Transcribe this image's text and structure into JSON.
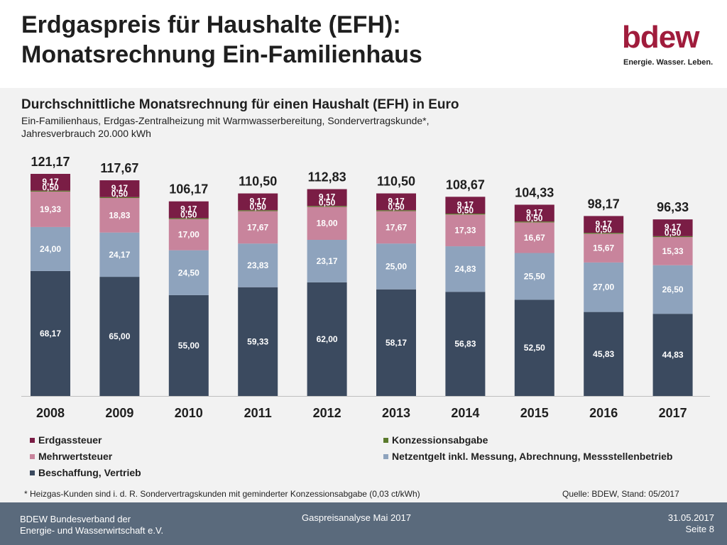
{
  "title_line1": "Erdgaspreis für Haushalte (EFH):",
  "title_line2": "Monatsrechnung Ein-Familienhaus",
  "logo": {
    "word": "bdew",
    "tagline": "Energie. Wasser. Leben."
  },
  "chart_data": {
    "type": "bar",
    "title": "Durchschnittliche Monatsrechnung für einen Haushalt (EFH) in Euro",
    "subtitle_line1": "Ein-Familienhaus, Erdgas-Zentralheizung mit Warmwasserbereitung, Sondervertragskunde*,",
    "subtitle_line2": "Jahresverbrauch 20.000 kWh",
    "stacked": true,
    "categories": [
      "2008",
      "2009",
      "2010",
      "2011",
      "2012",
      "2013",
      "2014",
      "2015",
      "2016",
      "2017"
    ],
    "series": [
      {
        "name": "Beschaffung, Vertrieb",
        "color": "#3b4a5f",
        "values": [
          68.17,
          65.0,
          55.0,
          59.33,
          62.0,
          58.17,
          56.83,
          52.5,
          45.83,
          44.83
        ],
        "labels": [
          "68,17",
          "65,00",
          "55,00",
          "59,33",
          "62,00",
          "58,17",
          "56,83",
          "52,50",
          "45,83",
          "44,83"
        ]
      },
      {
        "name": "Netzentgelt inkl. Messung, Abrechnung, Messstellenbetrieb",
        "color": "#8ea3bd",
        "values": [
          24.0,
          24.17,
          24.5,
          23.83,
          23.17,
          25.0,
          24.83,
          25.5,
          27.0,
          26.5
        ],
        "labels": [
          "24,00",
          "24,17",
          "24,50",
          "23,83",
          "23,17",
          "25,00",
          "24,83",
          "25,50",
          "27,00",
          "26,50"
        ]
      },
      {
        "name": "Mehrwertsteuer",
        "color": "#c8849c",
        "values": [
          19.33,
          18.83,
          17.0,
          17.67,
          18.0,
          17.67,
          17.33,
          16.67,
          15.67,
          15.33
        ],
        "labels": [
          "19,33",
          "18,83",
          "17,00",
          "17,67",
          "18,00",
          "17,67",
          "17,33",
          "16,67",
          "15,67",
          "15,33"
        ]
      },
      {
        "name": "Konzessionsabgabe",
        "color": "#5a7a2c",
        "values": [
          0.5,
          0.5,
          0.5,
          0.5,
          0.5,
          0.5,
          0.5,
          0.5,
          0.5,
          0.5
        ],
        "labels": [
          "0,50",
          "0,50",
          "0,50",
          "0,50",
          "0,50",
          "0,50",
          "0,50",
          "0,50",
          "0,50",
          "0,50"
        ]
      },
      {
        "name": "Erdgassteuer",
        "color": "#7a1d45",
        "values": [
          9.17,
          9.17,
          9.17,
          9.17,
          9.17,
          9.17,
          9.17,
          9.17,
          9.17,
          9.17
        ],
        "labels": [
          "9,17",
          "9,17",
          "9,17",
          "9,17",
          "9,17",
          "9,17",
          "9,17",
          "9,17",
          "9,17",
          "9,17"
        ]
      }
    ],
    "totals": [
      121.17,
      117.67,
      106.17,
      110.5,
      112.83,
      110.5,
      108.67,
      104.33,
      98.17,
      96.33
    ],
    "total_labels": [
      "121,17",
      "117,67",
      "106,17",
      "110,50",
      "112,83",
      "110,50",
      "108,67",
      "104,33",
      "98,17",
      "96,33"
    ],
    "ylim": [
      0,
      130
    ],
    "grid": false,
    "legend_position": "bottom",
    "legend_order": [
      "Erdgassteuer",
      "Konzessionsabgabe",
      "Mehrwertsteuer",
      "Netzentgelt inkl. Messung, Abrechnung, Messstellenbetrieb",
      "Beschaffung, Vertrieb"
    ]
  },
  "footnote": "* Heizgas-Kunden sind i. d. R. Sondervertragskunden mit geminderter Konzessionsabgabe (0,03 ct/kWh)",
  "source": "Quelle: BDEW, Stand: 05/2017",
  "footer": {
    "org_line1": "BDEW Bundesverband der",
    "org_line2": "Energie- und Wasserwirtschaft e.V.",
    "center": "Gaspreisanalyse Mai 2017",
    "date": "31.05.2017",
    "page": "Seite 8"
  }
}
